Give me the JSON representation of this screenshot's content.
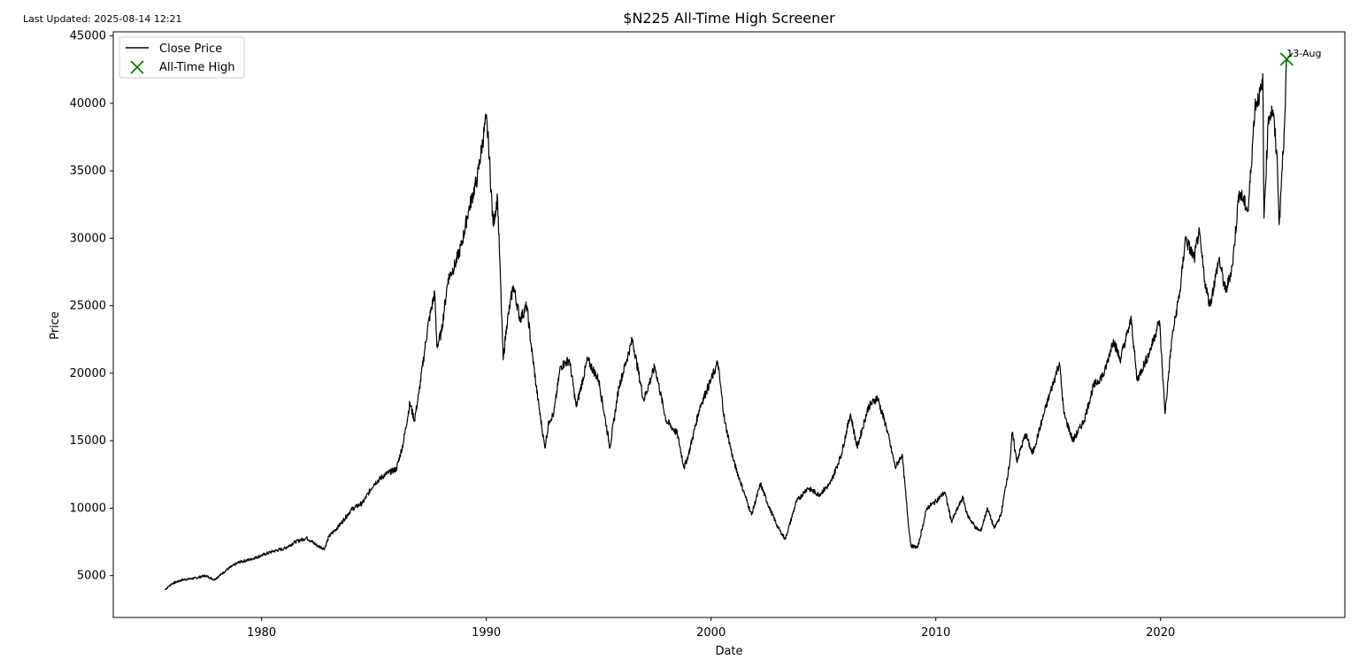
{
  "last_updated": "Last Updated: 2025-08-14 12:21",
  "chart_data": {
    "type": "line",
    "title": "$N225 All-Time High Screener",
    "xlabel": "Date",
    "ylabel": "Price",
    "xlim": [
      1973.4,
      2028.2
    ],
    "ylim": [
      1900,
      45300
    ],
    "xticks": [
      1980,
      1990,
      2000,
      2010,
      2020
    ],
    "yticks": [
      5000,
      10000,
      15000,
      20000,
      25000,
      30000,
      35000,
      40000,
      45000
    ],
    "grid": false,
    "legend_position": "upper-left",
    "legend": [
      "Close Price",
      "All-Time High"
    ],
    "series": [
      {
        "name": "Close Price",
        "color": "#000000",
        "points": [
          [
            1975.7,
            3950
          ],
          [
            1976.0,
            4400
          ],
          [
            1976.5,
            4700
          ],
          [
            1977.0,
            4800
          ],
          [
            1977.5,
            5000
          ],
          [
            1977.9,
            4700
          ],
          [
            1978.5,
            5500
          ],
          [
            1979.0,
            6000
          ],
          [
            1979.5,
            6200
          ],
          [
            1980.0,
            6500
          ],
          [
            1980.5,
            6800
          ],
          [
            1981.0,
            7000
          ],
          [
            1981.5,
            7500
          ],
          [
            1982.0,
            7800
          ],
          [
            1982.5,
            7200
          ],
          [
            1982.8,
            7000
          ],
          [
            1983.0,
            7900
          ],
          [
            1983.5,
            8800
          ],
          [
            1984.0,
            9900
          ],
          [
            1984.5,
            10400
          ],
          [
            1985.0,
            11800
          ],
          [
            1985.5,
            12500
          ],
          [
            1986.0,
            12900
          ],
          [
            1986.3,
            14800
          ],
          [
            1986.6,
            17800
          ],
          [
            1986.8,
            16500
          ],
          [
            1987.0,
            18500
          ],
          [
            1987.4,
            23500
          ],
          [
            1987.7,
            26000
          ],
          [
            1987.8,
            22000
          ],
          [
            1988.0,
            23000
          ],
          [
            1988.3,
            27000
          ],
          [
            1988.6,
            28000
          ],
          [
            1988.9,
            29500
          ],
          [
            1989.2,
            32000
          ],
          [
            1989.6,
            34500
          ],
          [
            1989.99,
            38900
          ],
          [
            1990.1,
            37000
          ],
          [
            1990.3,
            31000
          ],
          [
            1990.5,
            33000
          ],
          [
            1990.75,
            21000
          ],
          [
            1990.9,
            23500
          ],
          [
            1991.2,
            26500
          ],
          [
            1991.5,
            24000
          ],
          [
            1991.8,
            25000
          ],
          [
            1992.0,
            22000
          ],
          [
            1992.3,
            18000
          ],
          [
            1992.6,
            14500
          ],
          [
            1992.8,
            16500
          ],
          [
            1993.0,
            17000
          ],
          [
            1993.3,
            20500
          ],
          [
            1993.7,
            21000
          ],
          [
            1994.0,
            17500
          ],
          [
            1994.5,
            21000
          ],
          [
            1995.0,
            19500
          ],
          [
            1995.5,
            14500
          ],
          [
            1995.9,
            19000
          ],
          [
            1996.5,
            22500
          ],
          [
            1997.0,
            18000
          ],
          [
            1997.5,
            20500
          ],
          [
            1998.0,
            16500
          ],
          [
            1998.5,
            15500
          ],
          [
            1998.8,
            13000
          ],
          [
            1999.0,
            14000
          ],
          [
            1999.5,
            17500
          ],
          [
            2000.0,
            19500
          ],
          [
            2000.3,
            20800
          ],
          [
            2000.6,
            16500
          ],
          [
            2001.0,
            13500
          ],
          [
            2001.5,
            11000
          ],
          [
            2001.8,
            9500
          ],
          [
            2002.2,
            11800
          ],
          [
            2002.6,
            10000
          ],
          [
            2003.0,
            8500
          ],
          [
            2003.3,
            7700
          ],
          [
            2003.8,
            10500
          ],
          [
            2004.3,
            11500
          ],
          [
            2004.8,
            11000
          ],
          [
            2005.3,
            11800
          ],
          [
            2005.8,
            14000
          ],
          [
            2006.2,
            17000
          ],
          [
            2006.5,
            14500
          ],
          [
            2007.0,
            17500
          ],
          [
            2007.4,
            18200
          ],
          [
            2007.8,
            16000
          ],
          [
            2008.2,
            13000
          ],
          [
            2008.5,
            14000
          ],
          [
            2008.8,
            8500
          ],
          [
            2008.9,
            7200
          ],
          [
            2009.2,
            7100
          ],
          [
            2009.6,
            10000
          ],
          [
            2010.0,
            10500
          ],
          [
            2010.4,
            11200
          ],
          [
            2010.7,
            9000
          ],
          [
            2011.2,
            10800
          ],
          [
            2011.4,
            9500
          ],
          [
            2011.8,
            8500
          ],
          [
            2012.0,
            8300
          ],
          [
            2012.3,
            10000
          ],
          [
            2012.6,
            8500
          ],
          [
            2012.9,
            9500
          ],
          [
            2013.3,
            13500
          ],
          [
            2013.4,
            15600
          ],
          [
            2013.6,
            13500
          ],
          [
            2014.0,
            15500
          ],
          [
            2014.3,
            14000
          ],
          [
            2014.9,
            17500
          ],
          [
            2015.5,
            20800
          ],
          [
            2015.7,
            17000
          ],
          [
            2016.1,
            15000
          ],
          [
            2016.6,
            16500
          ],
          [
            2017.0,
            19000
          ],
          [
            2017.5,
            20000
          ],
          [
            2017.9,
            22500
          ],
          [
            2018.2,
            21000
          ],
          [
            2018.7,
            24000
          ],
          [
            2018.95,
            19500
          ],
          [
            2019.5,
            21500
          ],
          [
            2019.95,
            23900
          ],
          [
            2020.2,
            17000
          ],
          [
            2020.5,
            22500
          ],
          [
            2020.9,
            26500
          ],
          [
            2021.1,
            30000
          ],
          [
            2021.5,
            28500
          ],
          [
            2021.7,
            30500
          ],
          [
            2022.0,
            26500
          ],
          [
            2022.2,
            25000
          ],
          [
            2022.6,
            28500
          ],
          [
            2022.9,
            26000
          ],
          [
            2023.2,
            28000
          ],
          [
            2023.5,
            33500
          ],
          [
            2023.9,
            32000
          ],
          [
            2024.2,
            39800
          ],
          [
            2024.5,
            41000
          ],
          [
            2024.55,
            42200
          ],
          [
            2024.6,
            31500
          ],
          [
            2024.8,
            39000
          ],
          [
            2025.0,
            39500
          ],
          [
            2025.2,
            35500
          ],
          [
            2025.28,
            31000
          ],
          [
            2025.5,
            38000
          ],
          [
            2025.614,
            43274
          ]
        ]
      }
    ],
    "highlight": {
      "name": "All-Time High",
      "color": "#008000",
      "marker": "x",
      "x": 2025.614,
      "y": 43274,
      "label": "13-Aug"
    }
  }
}
